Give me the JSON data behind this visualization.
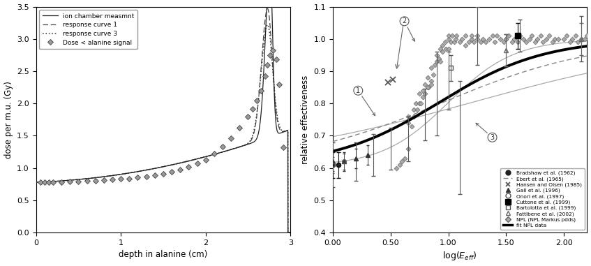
{
  "left_panel": {
    "xlabel": "depth in alanine (cm)",
    "ylabel": "dose per m.u. (Gy)",
    "xlim": [
      0.0,
      3.0
    ],
    "ylim": [
      0.0,
      3.5
    ],
    "xticks": [
      0.0,
      1.0,
      2.0,
      3.0
    ],
    "yticks": [
      0.0,
      0.5,
      1.0,
      1.5,
      2.0,
      2.5,
      3.0,
      3.5
    ],
    "legend_entries": [
      "ion chamber measmnt",
      "Dose < alanine signal",
      "response curve 1",
      "response curve 3"
    ],
    "data_x": [
      0.05,
      0.1,
      0.15,
      0.2,
      0.3,
      0.4,
      0.5,
      0.6,
      0.7,
      0.8,
      0.9,
      1.0,
      1.1,
      1.2,
      1.3,
      1.4,
      1.5,
      1.6,
      1.7,
      1.8,
      1.9,
      2.0,
      2.1,
      2.2,
      2.3,
      2.4,
      2.5,
      2.55,
      2.6,
      2.65,
      2.7,
      2.73,
      2.76,
      2.79,
      2.83,
      2.87,
      2.92
    ],
    "data_y": [
      0.78,
      0.78,
      0.78,
      0.78,
      0.78,
      0.79,
      0.79,
      0.8,
      0.8,
      0.81,
      0.82,
      0.83,
      0.84,
      0.855,
      0.87,
      0.885,
      0.91,
      0.94,
      0.975,
      1.02,
      1.07,
      1.13,
      1.22,
      1.33,
      1.46,
      1.62,
      1.8,
      1.92,
      2.05,
      2.2,
      2.42,
      2.6,
      2.75,
      2.82,
      2.68,
      2.3,
      1.32
    ]
  },
  "right_panel": {
    "xlabel": "log(E_eff)",
    "ylabel": "relative effectiveness",
    "xlim": [
      0.0,
      2.2
    ],
    "ylim": [
      0.4,
      1.1
    ],
    "xticks": [
      0.0,
      0.5,
      1.0,
      1.5,
      2.0
    ],
    "yticks": [
      0.4,
      0.5,
      0.6,
      0.7,
      0.8,
      0.9,
      1.0,
      1.1
    ],
    "xtick_labels": [
      "0.00",
      "0.50",
      "1.00",
      "1.50",
      "2.00"
    ],
    "legend_entries": [
      "Bradshaw et al. (1962)",
      "Ebert et al. (1965)",
      "Hansen and Olsen (1985)",
      "Gall et al. (1996)",
      "Onori et al. (1997)",
      "Cuttone et al. (1999)",
      "Bartolotta et al. (1999)",
      "Fattibene et al. (2002)",
      "NPL (NPL Markus pdds)",
      "fit NPL data"
    ]
  },
  "bg_color": "#ffffff",
  "text_color": "#000000"
}
